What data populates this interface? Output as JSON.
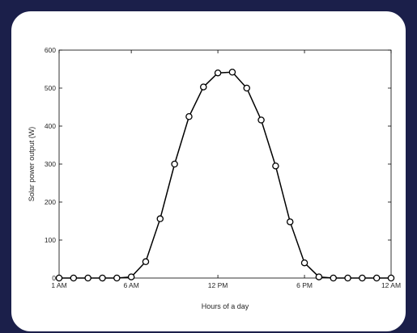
{
  "chart_data": {
    "type": "line",
    "title": "",
    "xlabel": "Hours of a day",
    "ylabel": "Solar power output (W)",
    "x": [
      1,
      2,
      3,
      4,
      5,
      6,
      7,
      8,
      9,
      10,
      11,
      12,
      13,
      14,
      15,
      16,
      17,
      18,
      19,
      20,
      21,
      22,
      23,
      24
    ],
    "xlim": [
      1,
      24
    ],
    "xticks": [
      1,
      6,
      12,
      18,
      24
    ],
    "xtick_labels": [
      "1 AM",
      "6 AM",
      "12 PM",
      "6 PM",
      "12 AM"
    ],
    "ylim": [
      0,
      600
    ],
    "yticks": [
      0,
      100,
      200,
      300,
      400,
      500,
      600
    ],
    "ytick_labels": [
      "0",
      "100",
      "200",
      "300",
      "400",
      "500",
      "600"
    ],
    "series": [
      {
        "values": [
          0,
          0,
          0,
          0,
          0,
          3,
          43,
          156,
          300,
          425,
          503,
          540,
          542,
          500,
          416,
          295,
          148,
          40,
          3,
          0,
          0,
          0,
          0,
          0
        ],
        "color": "#000000",
        "marker": "circle"
      }
    ],
    "grid": false,
    "legend": "none"
  },
  "colors": {
    "frame_border": "#1b1f4a",
    "background": "#ffffff",
    "line": "#000000"
  }
}
